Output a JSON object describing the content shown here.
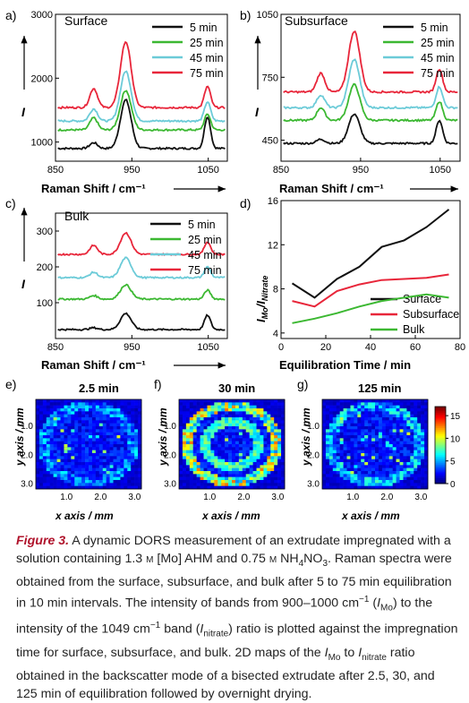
{
  "figure": {
    "panels": {
      "a": {
        "letter": "a)",
        "title": "Surface"
      },
      "b": {
        "letter": "b)",
        "title": "Subsurface"
      },
      "c": {
        "letter": "c)",
        "title": "Bulk"
      },
      "d": {
        "letter": "d)"
      },
      "e": {
        "letter": "e)",
        "title": "2.5 min"
      },
      "f": {
        "letter": "f)",
        "title": "30 min"
      },
      "g": {
        "letter": "g)",
        "title": "125 min"
      }
    },
    "raman_xlabel": "Raman Shift / cm⁻¹",
    "raman_ylabel": "I",
    "d_xlabel": "Equilibration Time / min",
    "d_ylabel": "I",
    "d_ylabel_sub1": "Mo",
    "d_ylabel_sep": "/I",
    "d_ylabel_sub2": "Nitrate",
    "map_xlabel": "x axis / mm",
    "map_ylabel": "y axis / mm",
    "colors": {
      "5min": "#111111",
      "25min": "#3cb832",
      "45min": "#6ccbd8",
      "75min": "#e8263a"
    }
  },
  "chart_data": [
    {
      "panel": "a",
      "type": "line",
      "title": "Surface",
      "xlabel": "Raman Shift / cm⁻¹",
      "ylabel": "I",
      "xlim": [
        850,
        1075
      ],
      "ylim": [
        700,
        3000
      ],
      "xticks": [
        850,
        950,
        1050
      ],
      "yticks": [
        1000,
        2000,
        3000
      ],
      "series": [
        {
          "name": "5 min",
          "baseline": 900,
          "p1": 90,
          "p2": 760,
          "p3": 500
        },
        {
          "name": "25 min",
          "baseline": 1190,
          "p1": 190,
          "p2": 620,
          "p3": 250
        },
        {
          "name": "45 min",
          "baseline": 1330,
          "p1": 190,
          "p2": 780,
          "p3": 300
        },
        {
          "name": "75 min",
          "baseline": 1540,
          "p1": 300,
          "p2": 1030,
          "p3": 330
        }
      ]
    },
    {
      "panel": "b",
      "type": "line",
      "title": "Subsurface",
      "xlabel": "Raman Shift / cm⁻¹",
      "ylabel": "I",
      "xlim": [
        850,
        1075
      ],
      "ylim": [
        350,
        1050
      ],
      "xticks": [
        850,
        950,
        1050
      ],
      "yticks": [
        450,
        750,
        1050
      ],
      "series": [
        {
          "name": "5 min",
          "baseline": 435,
          "p1": 20,
          "p2": 140,
          "p3": 110
        },
        {
          "name": "25 min",
          "baseline": 545,
          "p1": 60,
          "p2": 170,
          "p3": 90
        },
        {
          "name": "45 min",
          "baseline": 605,
          "p1": 60,
          "p2": 230,
          "p3": 100
        },
        {
          "name": "75 min",
          "baseline": 680,
          "p1": 90,
          "p2": 290,
          "p3": 110
        }
      ]
    },
    {
      "panel": "c",
      "type": "line",
      "title": "Bulk",
      "xlabel": "Raman Shift / cm⁻¹",
      "ylabel": "I",
      "xlim": [
        850,
        1075
      ],
      "ylim": [
        0,
        350
      ],
      "xticks": [
        850,
        950,
        1050
      ],
      "yticks": [
        100,
        200,
        300
      ],
      "series": [
        {
          "name": "5 min",
          "baseline": 25,
          "p1": 5,
          "p2": 45,
          "p3": 40
        },
        {
          "name": "25 min",
          "baseline": 110,
          "p1": 10,
          "p2": 40,
          "p3": 25
        },
        {
          "name": "45 min",
          "baseline": 170,
          "p1": 15,
          "p2": 55,
          "p3": 30
        },
        {
          "name": "75 min",
          "baseline": 235,
          "p1": 25,
          "p2": 60,
          "p3": 35
        }
      ]
    },
    {
      "panel": "d",
      "type": "line",
      "xlabel": "Equilibration Time / min",
      "ylabel": "IMo/INitrate",
      "xlim": [
        0,
        80
      ],
      "ylim": [
        3.5,
        16
      ],
      "xticks": [
        0,
        20,
        40,
        60,
        80
      ],
      "yticks": [
        4,
        8,
        12,
        16
      ],
      "x": [
        5,
        15,
        25,
        35,
        45,
        55,
        65,
        75
      ],
      "series": [
        {
          "name": "Surface",
          "values": [
            8.5,
            7.2,
            8.9,
            10.0,
            11.8,
            12.4,
            13.6,
            15.2
          ]
        },
        {
          "name": "Subsurface",
          "values": [
            6.9,
            6.4,
            7.8,
            8.4,
            8.8,
            8.9,
            9.0,
            9.3
          ]
        },
        {
          "name": "Bulk",
          "values": [
            4.9,
            5.3,
            5.8,
            6.4,
            6.9,
            7.2,
            7.5,
            7.2
          ]
        }
      ]
    },
    {
      "panel": "e",
      "type": "heatmap",
      "title": "2.5 min",
      "ring_level": 5,
      "hotspots": 18,
      "xticks": [
        1.0,
        2.0,
        3.0
      ],
      "yticks": [
        1.0,
        2.0,
        3.0
      ],
      "xlabel": "x axis / mm",
      "ylabel": "y axis / mm"
    },
    {
      "panel": "f",
      "type": "heatmap",
      "title": "30 min",
      "ring_level": 10,
      "hotspots": 10,
      "xticks": [
        1.0,
        2.0,
        3.0
      ],
      "yticks": [
        1.0,
        2.0,
        3.0
      ],
      "xlabel": "x axis / mm",
      "ylabel": "y axis / mm"
    },
    {
      "panel": "g",
      "type": "heatmap",
      "title": "125 min",
      "ring_level": 6,
      "hotspots": 30,
      "xticks": [
        1.0,
        2.0,
        3.0
      ],
      "yticks": [
        1.0,
        2.0,
        3.0
      ],
      "xlabel": "x axis / mm",
      "ylabel": "y axis / mm"
    },
    {
      "panel": "colorbar",
      "type": "heatmap",
      "range": [
        0,
        17
      ],
      "ticks": [
        0,
        5,
        10,
        15
      ]
    }
  ],
  "caption": {
    "lead": "Figure 3.",
    "s1": " A dynamic DORS measurement of an extrudate impregnated with a solution containing 1.3 ",
    "m1": "m",
    "s2": " [Mo] AHM and 0.75 ",
    "m2": "m",
    "s3": " NH",
    "sub1": "4",
    "s4": "NO",
    "sub2": "3",
    "s5": ". Raman spectra were obtained from the surface, subsurface, and bulk after 5 to 75 min equilibration in 10 min intervals. The intensity of bands from 900–1000 cm",
    "sup1": "−1",
    "s6": " (",
    "i1": "I",
    "isub1": "Mo",
    "s7": ") to the intensity of the 1049 cm",
    "sup2": "−1",
    "s8": " band (",
    "i2": "I",
    "isub2": "nitrate",
    "s9": ") ratio is plotted against the impregnation time for surface, subsurface, and bulk. 2D maps of the ",
    "i3": "I",
    "isub3": "Mo",
    "s10": " to ",
    "i4": "I",
    "isub4": "nitrate",
    "s11": " ratio obtained in the backscatter mode of a bisected extrudate after 2.5, 30, and 125 min of equilibration followed by overnight drying."
  }
}
